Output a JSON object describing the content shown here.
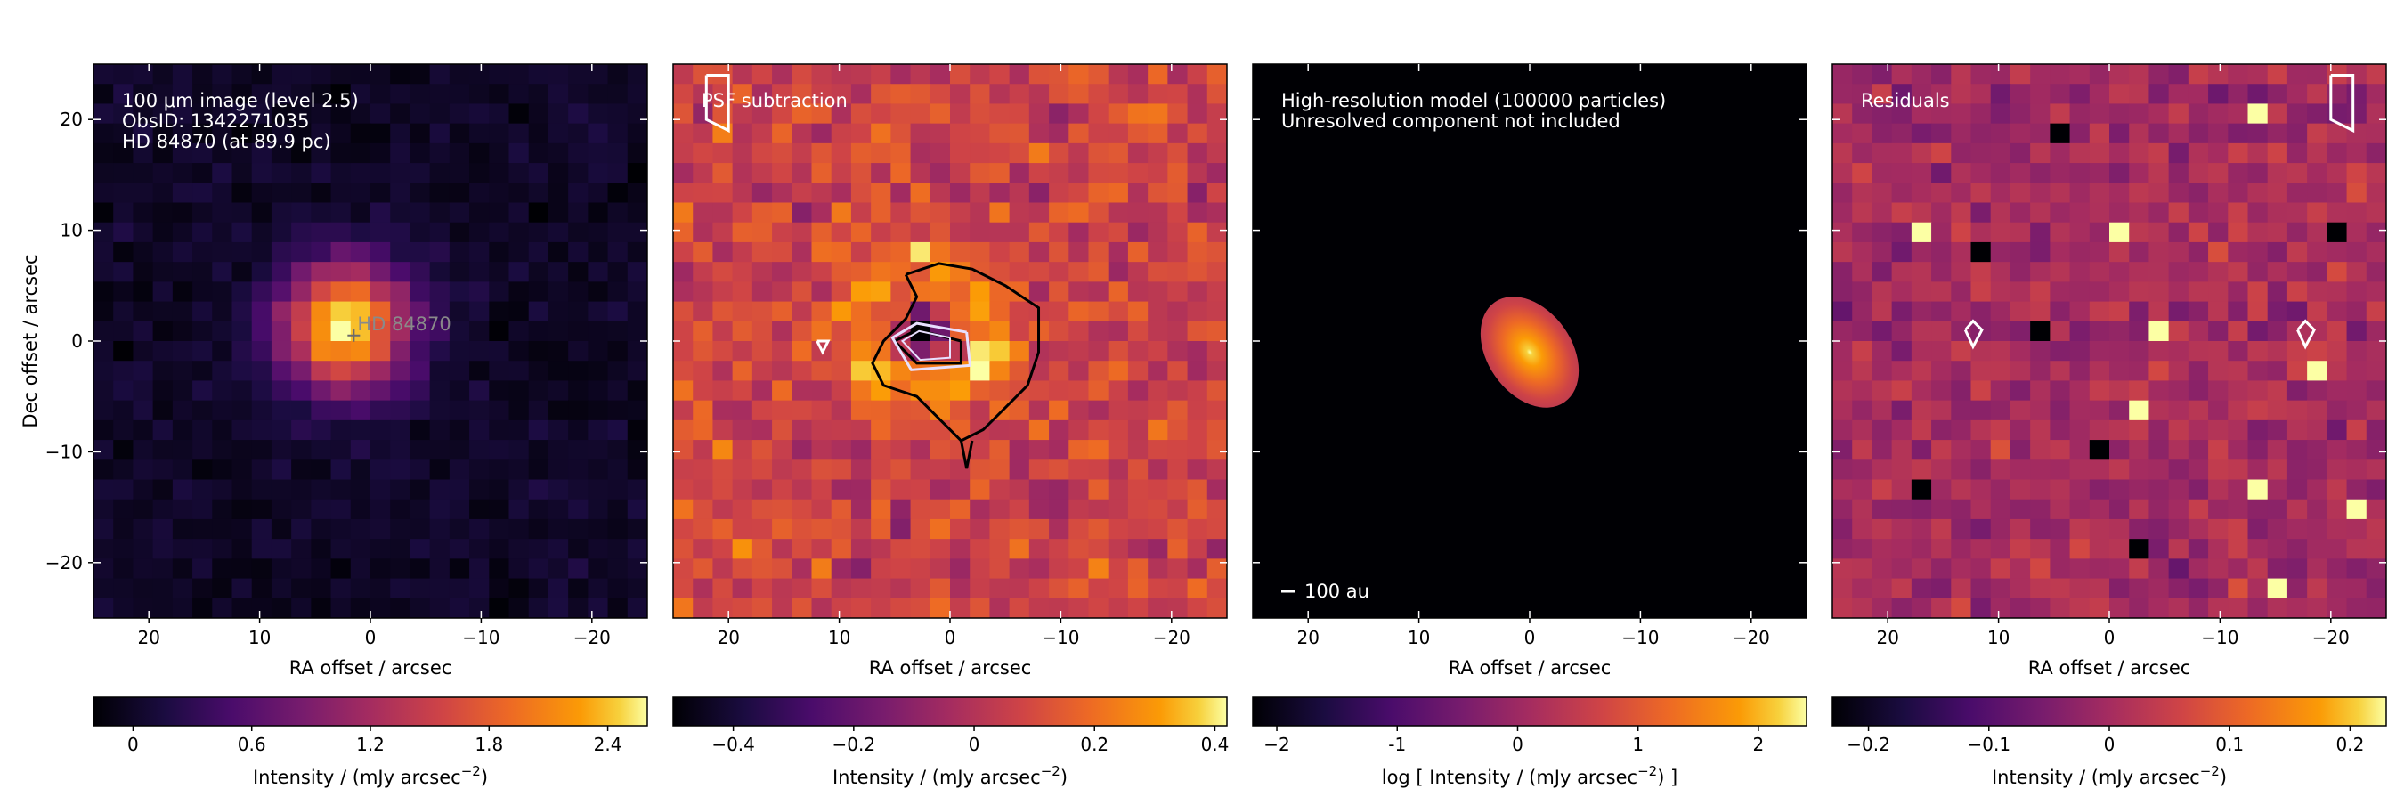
{
  "chart_data": [
    {
      "type": "heatmap",
      "id": "panel-1",
      "colormap": "inferno",
      "annotation": [
        "100 μm image (level 2.5)",
        "ObsID: 1342271035",
        "HD 84870 (at 89.9 pc)"
      ],
      "source_label": "HD 84870",
      "source_marker": [
        1.5,
        0.5
      ],
      "xlabel": "RA offset / arcsec",
      "ylabel": "Dec offset / arcsec",
      "xlim": [
        25,
        -25
      ],
      "ylim": [
        -25,
        25
      ],
      "xticks": [
        20,
        10,
        0,
        -10,
        -20
      ],
      "xtick_labels": [
        "20",
        "10",
        "0",
        "−10",
        "−20"
      ],
      "yticks": [
        20,
        10,
        0,
        -10,
        -20
      ],
      "ytick_labels": [
        "20",
        "10",
        "0",
        "−10",
        "−20"
      ],
      "image": {
        "kind": "psf_source",
        "center": [
          1.5,
          0.5
        ],
        "sigma": 4.2,
        "peak": 2.55,
        "noise": 0.08,
        "pixel": 1.85
      },
      "colorbar": {
        "range": [
          -0.2,
          2.6
        ],
        "ticks": [
          0,
          0.6,
          1.2,
          1.8,
          2.4
        ],
        "tick_labels": [
          "0",
          "0.6",
          "1.2",
          "1.8",
          "2.4"
        ],
        "label": "Intensity / (mJy arcsec",
        "label_sup": "−2",
        "label_end": ")"
      }
    },
    {
      "type": "heatmap",
      "id": "panel-2",
      "colormap": "inferno",
      "annotation": [
        "PSF subtraction"
      ],
      "xlabel": "RA offset / arcsec",
      "xlim": [
        25,
        -25
      ],
      "ylim": [
        -25,
        25
      ],
      "xticks": [
        20,
        10,
        0,
        -10,
        -20
      ],
      "xtick_labels": [
        "20",
        "10",
        "0",
        "−10",
        "−20"
      ],
      "image": {
        "kind": "residual_ring",
        "pixel": 1.85
      },
      "colorbar": {
        "range": [
          -0.5,
          0.42
        ],
        "ticks": [
          -0.4,
          -0.2,
          0,
          0.2,
          0.4
        ],
        "tick_labels": [
          "−0.4",
          "−0.2",
          "0",
          "0.2",
          "0.4"
        ],
        "label": "Intensity / (mJy arcsec",
        "label_sup": "−2",
        "label_end": ")"
      }
    },
    {
      "type": "heatmap",
      "id": "panel-3",
      "colormap": "inferno",
      "annotation": [
        "High-resolution model (100000 particles)",
        "Unresolved component not included"
      ],
      "scalebar_label": "100 au",
      "xlabel": "RA offset / arcsec",
      "xlim": [
        25,
        -25
      ],
      "ylim": [
        -25,
        25
      ],
      "xticks": [
        20,
        10,
        0,
        -10,
        -20
      ],
      "xtick_labels": [
        "20",
        "10",
        "0",
        "−10",
        "−20"
      ],
      "image": {
        "kind": "disc_model",
        "center": [
          0,
          -1
        ],
        "semi_major": 5.5,
        "semi_minor": 3.8,
        "angle_deg": -35
      },
      "colorbar": {
        "range": [
          -2.2,
          2.4
        ],
        "ticks": [
          -2,
          -1,
          0,
          1,
          2
        ],
        "tick_labels": [
          "−2",
          "-1",
          "0",
          "1",
          "2"
        ],
        "label": "log [ Intensity / (mJy arcsec",
        "label_sup": "−2",
        "label_end": ") ]"
      }
    },
    {
      "type": "heatmap",
      "id": "panel-4",
      "colormap": "inferno",
      "annotation": [
        "Residuals"
      ],
      "xlabel": "RA offset / arcsec",
      "xlim": [
        25,
        -25
      ],
      "ylim": [
        -25,
        25
      ],
      "xticks": [
        20,
        10,
        0,
        -10,
        -20
      ],
      "xtick_labels": [
        "20",
        "10",
        "0",
        "−10",
        "−20"
      ],
      "image": {
        "kind": "noise",
        "pixel": 1.85
      },
      "colorbar": {
        "range": [
          -0.23,
          0.23
        ],
        "ticks": [
          -0.2,
          -0.1,
          0,
          0.1,
          0.2
        ],
        "tick_labels": [
          "−0.2",
          "−0.1",
          "0",
          "0.1",
          "0.2"
        ],
        "label": "Intensity / (mJy arcsec",
        "label_sup": "−2",
        "label_end": ")"
      }
    }
  ]
}
